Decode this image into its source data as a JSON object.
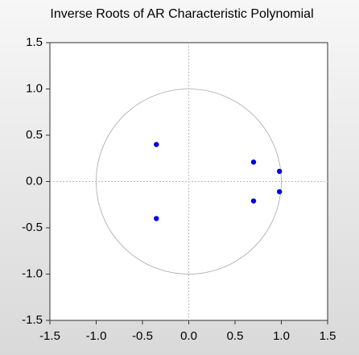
{
  "chart_data": {
    "type": "scatter",
    "title": "Inverse Roots of AR Characteristic Polynomial",
    "x": [
      -0.35,
      -0.35,
      0.7,
      0.7,
      0.98,
      0.98
    ],
    "values": [
      0.4,
      -0.4,
      0.21,
      -0.21,
      0.11,
      -0.11
    ],
    "color": "#0000e0",
    "xlim": [
      -1.5,
      1.5
    ],
    "xticks": [
      -1.5,
      {
        "value": -1.0,
        "label": "-1.0"
      },
      -0.5,
      {
        "value": 0.0,
        "label": "0.0"
      },
      0.5,
      {
        "value": 1.0,
        "label": "1.0"
      },
      1.5
    ],
    "ylim": [
      -1.5,
      1.5
    ],
    "yticks": [
      -1.5,
      {
        "value": -1.0,
        "label": "-1.0"
      },
      -0.5,
      {
        "value": 0.0,
        "label": "0.0"
      },
      0.5,
      {
        "value": 1.0,
        "label": "1.0"
      },
      1.5
    ]
  }
}
